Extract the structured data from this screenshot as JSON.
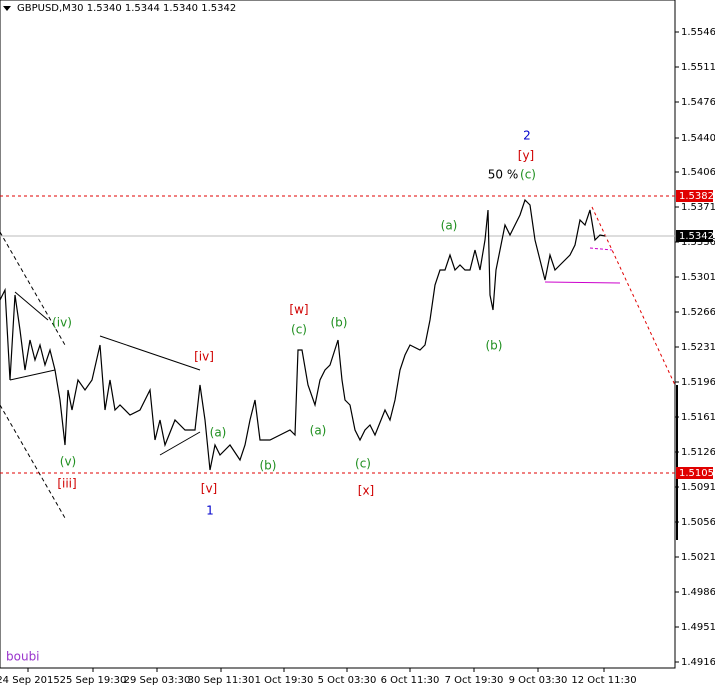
{
  "chart_data": {
    "type": "line",
    "title": "GBPUSD,M30 1.5340 1.5344 1.5340 1.5342",
    "watermark": "boubi",
    "x": [
      0,
      5,
      10,
      15,
      20,
      25,
      30,
      35,
      40,
      45,
      50,
      55,
      60,
      65,
      68,
      72,
      78,
      85,
      92,
      100,
      105,
      110,
      115,
      120,
      130,
      140,
      150,
      155,
      160,
      165,
      175,
      185,
      195,
      200,
      205,
      210,
      215,
      220,
      230,
      240,
      245,
      250,
      255,
      260,
      265,
      270,
      280,
      290,
      295,
      298,
      302,
      308,
      315,
      320,
      325,
      330,
      338,
      342,
      345,
      350,
      355,
      360,
      365,
      370,
      375,
      385,
      390,
      395,
      400,
      405,
      410,
      420,
      425,
      430,
      435,
      440,
      445,
      450,
      455,
      460,
      465,
      470,
      475,
      480,
      485,
      488,
      490,
      493,
      496,
      500,
      505,
      510,
      515,
      520,
      525,
      530,
      535,
      540,
      545,
      550,
      555,
      560,
      570,
      575,
      580,
      585,
      590,
      595,
      600,
      605
    ],
    "series": [
      {
        "name": "GBPUSD",
        "color": "#000000",
        "values": [
          1.5278,
          1.5288,
          1.5198,
          1.5283,
          1.5248,
          1.5208,
          1.5238,
          1.5218,
          1.5233,
          1.5213,
          1.5228,
          1.5208,
          1.5178,
          1.5133,
          1.5188,
          1.5168,
          1.5198,
          1.5188,
          1.5198,
          1.5233,
          1.5168,
          1.5198,
          1.5168,
          1.5173,
          1.5163,
          1.5168,
          1.5188,
          1.5138,
          1.5158,
          1.5133,
          1.5158,
          1.5148,
          1.5148,
          1.5193,
          1.5158,
          1.5108,
          1.5133,
          1.5123,
          1.5133,
          1.5118,
          1.5133,
          1.5158,
          1.5178,
          1.5138,
          1.5138,
          1.5138,
          1.5143,
          1.5148,
          1.5143,
          1.5228,
          1.5228,
          1.5193,
          1.5173,
          1.5198,
          1.5208,
          1.5213,
          1.5238,
          1.5198,
          1.5178,
          1.5173,
          1.5148,
          1.5138,
          1.5148,
          1.5153,
          1.5143,
          1.5168,
          1.5158,
          1.5178,
          1.5208,
          1.5223,
          1.5233,
          1.5228,
          1.5233,
          1.5258,
          1.5293,
          1.5308,
          1.5308,
          1.5323,
          1.5308,
          1.5313,
          1.5308,
          1.5308,
          1.5328,
          1.5308,
          1.5338,
          1.5368,
          1.5283,
          1.5268,
          1.5308,
          1.5328,
          1.5353,
          1.5343,
          1.5353,
          1.5363,
          1.5378,
          1.5373,
          1.5338,
          1.5318,
          1.5298,
          1.5323,
          1.5308,
          1.5313,
          1.5323,
          1.5333,
          1.5358,
          1.5353,
          1.5368,
          1.5338,
          1.5343,
          1.5342
        ]
      }
    ],
    "xlim": [
      0,
      675
    ],
    "xticks": [
      {
        "value": 28,
        "label": "24 Sep 2015"
      },
      {
        "value": 93,
        "label": "25 Sep 19:30"
      },
      {
        "value": 157,
        "label": "29 Sep 03:30"
      },
      {
        "value": 221,
        "label": "30 Sep 11:30"
      },
      {
        "value": 284,
        "label": "1 Oct 19:30"
      },
      {
        "value": 347,
        "label": "5 Oct 03:30"
      },
      {
        "value": 410,
        "label": "6 Oct 11:30"
      },
      {
        "value": 474,
        "label": "7 Oct 19:30"
      },
      {
        "value": 538,
        "label": "9 Oct 03:30"
      },
      {
        "value": 604,
        "label": "12 Oct 11:30"
      }
    ],
    "ylim": [
      1.491,
      1.5578
    ],
    "yticks": [
      1.5546,
      1.5511,
      1.5476,
      {
        "value": 1.544,
        "label": "1.5440"
      },
      1.5406,
      1.5371,
      1.5336,
      1.5301,
      1.5266,
      1.5231,
      1.5196,
      1.5161,
      1.5126,
      1.5091,
      1.5056,
      1.5021,
      1.4986,
      1.4951,
      1.4916
    ],
    "levels": [
      {
        "value": 1.5382,
        "color": "#e00000",
        "style": "dotted"
      },
      {
        "value": 1.5105,
        "color": "#e00000",
        "style": "dotted"
      },
      {
        "value": 1.5342,
        "color": "#000000",
        "style": "solid"
      }
    ],
    "annotations": [
      {
        "text": "(iv)",
        "color": "#1f8f1f"
      },
      {
        "text": "(v)",
        "color": "#1f8f1f"
      },
      {
        "text": "[iii]",
        "color": "#d00000"
      },
      {
        "text": "[iv]",
        "color": "#d00000"
      },
      {
        "text": "[v]",
        "color": "#d00000"
      },
      {
        "text": "1",
        "color": "#0000cc"
      },
      {
        "text": "(a)",
        "color": "#1f8f1f"
      },
      {
        "text": "(b)",
        "color": "#1f8f1f"
      },
      {
        "text": "[w]",
        "color": "#d00000"
      },
      {
        "text": "(c)",
        "color": "#1f8f1f"
      },
      {
        "text": "(a)",
        "color": "#1f8f1f"
      },
      {
        "text": "(b)",
        "color": "#1f8f1f"
      },
      {
        "text": "(c)",
        "color": "#1f8f1f"
      },
      {
        "text": "[x]",
        "color": "#d00000"
      },
      {
        "text": "(a)",
        "color": "#1f8f1f"
      },
      {
        "text": "(b)",
        "color": "#1f8f1f"
      },
      {
        "text": "50 %",
        "color": "#000000"
      },
      {
        "text": "(c)",
        "color": "#1f8f1f"
      },
      {
        "text": "[y]",
        "color": "#d00000"
      },
      {
        "text": "2",
        "color": "#0000cc"
      }
    ]
  }
}
